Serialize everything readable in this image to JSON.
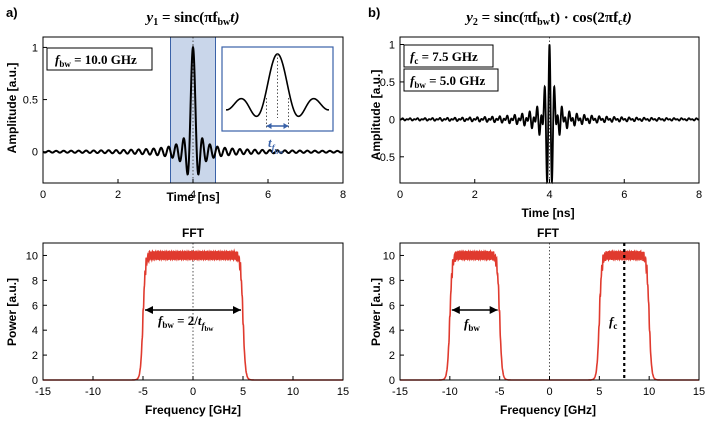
{
  "chart_data": [
    {
      "panel_label": "a)",
      "type": "line",
      "title_main": "y",
      "title_sub": "1",
      "title_rest": " = sinc(πf",
      "title_rest_sub": "bw",
      "title_end": "t)",
      "xlabel": "Time [ns]",
      "ylabel": "Amplitude [a.u.]",
      "xlim": [
        0,
        8
      ],
      "ylim": [
        -0.3,
        1.1
      ],
      "xticks": [
        0,
        2,
        4,
        6,
        8
      ],
      "yticks": [
        0,
        0.5,
        1
      ],
      "series": [
        {
          "function": "sinc",
          "t0": 4,
          "f_bw": 10.0
        }
      ],
      "highlight_span": [
        3.4,
        4.6
      ],
      "annotation_box": {
        "f": "f",
        "sub": "bw",
        "rest": " = 10.0 GHz"
      },
      "inset_label": {
        "t": "t",
        "sub_f": "f",
        "sub_bw": "bw"
      }
    },
    {
      "panel_label": "b)",
      "type": "line",
      "title_main": "y",
      "title_sub": "2",
      "title_rest": " = sinc(πf",
      "title_rest_sub": "bw",
      "title_mid": "t) · cos(2πf",
      "title_mid_sub": "c",
      "title_end": "t)",
      "xlabel": "Time [ns]",
      "ylabel": "Amplitude [a.u.]",
      "xlim": [
        0,
        8
      ],
      "ylim": [
        -0.85,
        1.1
      ],
      "xticks": [
        0,
        2,
        4,
        6,
        8
      ],
      "yticks": [
        -0.5,
        0,
        0.5,
        1
      ],
      "series": [
        {
          "function": "sinc_cos",
          "t0": 4,
          "f_bw": 5.0,
          "f_c": 7.5
        }
      ],
      "annotation_boxes": [
        {
          "f": "f",
          "sub": "c",
          "rest": " = 7.5 GHz"
        },
        {
          "f": "f",
          "sub": "bw",
          "rest": " = 5.0 GHz"
        }
      ]
    },
    {
      "type": "line",
      "title": "FFT",
      "xlabel": "Frequency [GHz]",
      "ylabel": "Power [a.u.]",
      "xlim": [
        -15,
        15
      ],
      "ylim": [
        0,
        11
      ],
      "xticks": [
        -15,
        -10,
        -5,
        0,
        5,
        10,
        15
      ],
      "yticks": [
        0,
        2,
        4,
        6,
        8,
        10
      ],
      "bands": [
        [
          -5,
          5
        ]
      ],
      "plateau": 10,
      "arrow_label": {
        "f": "f",
        "sub": "bw",
        "mid": " = 2/",
        "t": "t",
        "tsub_f": "f",
        "tsub_bw": "bw"
      }
    },
    {
      "type": "line",
      "title": "FFT",
      "xlabel": "Frequency [GHz]",
      "ylabel": "Power [a.u.]",
      "xlim": [
        -15,
        15
      ],
      "ylim": [
        0,
        11
      ],
      "xticks": [
        -15,
        -10,
        -5,
        0,
        5,
        10,
        15
      ],
      "yticks": [
        0,
        2,
        4,
        6,
        8,
        10
      ],
      "bands": [
        [
          -10,
          -5
        ],
        [
          5,
          10
        ]
      ],
      "plateau": 10,
      "fc_line": 7.5,
      "arrow_label": {
        "f": "f",
        "sub": "bw"
      },
      "fc_label": {
        "f": "f",
        "sub": "c"
      }
    }
  ],
  "colors": {
    "time_line": "#000000",
    "fft_line": "#e03a2e",
    "highlight_fill": "#c9d6ea",
    "highlight_stroke": "#3a62a8",
    "inset_frame": "#3a62a8",
    "inset_arrow": "#3a62a8"
  }
}
